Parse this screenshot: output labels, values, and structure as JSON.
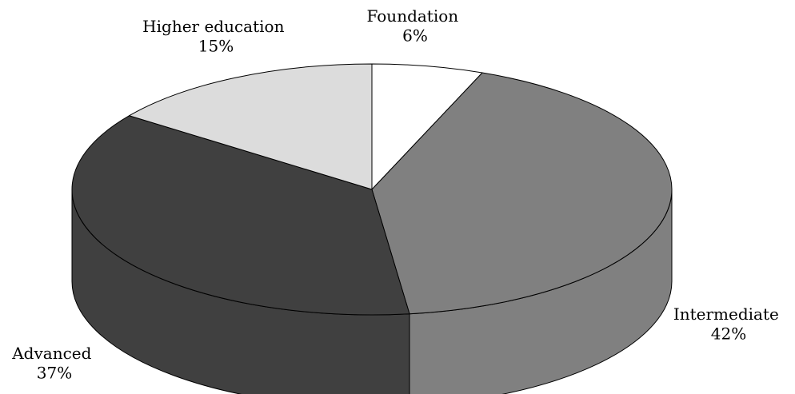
{
  "chart_data": {
    "type": "pie",
    "style": "3d",
    "title": "",
    "slices": [
      {
        "label": "Foundation",
        "value": 6,
        "value_label": "6%",
        "color": "#ffffff"
      },
      {
        "label": "Intermediate",
        "value": 42,
        "value_label": "42%",
        "color": "#808080"
      },
      {
        "label": "Advanced",
        "value": 37,
        "value_label": "37%",
        "color": "#404040"
      },
      {
        "label": "Higher education",
        "value": 15,
        "value_label": "15%",
        "color": "#dcdcdc"
      }
    ]
  }
}
